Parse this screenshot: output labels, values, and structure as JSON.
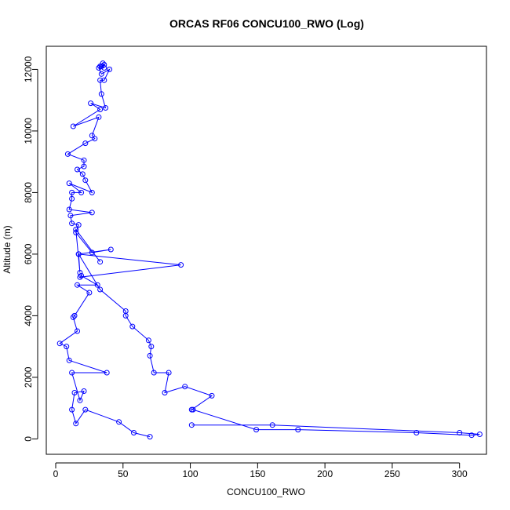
{
  "chart_data": {
    "type": "line",
    "title": "ORCAS RF06 CONCU100_RWO (Log)",
    "xlabel": "CONCU100_RWO",
    "ylabel": "Altitude (m)",
    "xlim": [
      -7,
      320
    ],
    "ylim": [
      -500,
      12750
    ],
    "x_ticks": [
      0,
      50,
      100,
      150,
      200,
      250,
      300
    ],
    "y_ticks": [
      0,
      2000,
      4000,
      6000,
      8000,
      10000,
      12000
    ],
    "grid": false,
    "marker": "open-circle",
    "colors": {
      "series": "#0000ff"
    },
    "series": [
      {
        "points": [
          [
            70,
            70
          ],
          [
            58,
            200
          ],
          [
            47,
            550
          ],
          [
            22,
            950
          ],
          [
            15,
            500
          ],
          [
            12,
            950
          ],
          [
            14,
            1500
          ],
          [
            21,
            1550
          ],
          [
            18,
            1250
          ],
          [
            12,
            2150
          ],
          [
            38,
            2150
          ],
          [
            10,
            2550
          ],
          [
            8,
            3000
          ],
          [
            3,
            3100
          ],
          [
            16,
            3500
          ],
          [
            13,
            3950
          ],
          [
            14,
            4000
          ],
          [
            25,
            4750
          ],
          [
            16,
            5000
          ],
          [
            31,
            5000
          ],
          [
            19,
            5300
          ],
          [
            18,
            5250
          ],
          [
            93,
            5650
          ],
          [
            17,
            6000
          ],
          [
            41,
            6150
          ],
          [
            27,
            6050
          ],
          [
            15,
            6700
          ],
          [
            17,
            6950
          ],
          [
            12,
            7000
          ],
          [
            11,
            7250
          ],
          [
            27,
            7350
          ],
          [
            10,
            7450
          ],
          [
            12,
            7800
          ],
          [
            12,
            8000
          ],
          [
            19,
            8000
          ],
          [
            10,
            8300
          ],
          [
            27,
            8000
          ],
          [
            22,
            8400
          ],
          [
            20,
            8600
          ],
          [
            16,
            8750
          ],
          [
            21,
            8850
          ],
          [
            21,
            9050
          ],
          [
            9,
            9250
          ],
          [
            22,
            9600
          ],
          [
            29,
            9750
          ],
          [
            27,
            9850
          ],
          [
            32,
            10450
          ],
          [
            13,
            10150
          ],
          [
            33,
            10700
          ],
          [
            26,
            10900
          ],
          [
            37,
            10750
          ],
          [
            34,
            11200
          ],
          [
            33,
            11650
          ],
          [
            36,
            11650
          ],
          [
            40,
            12000
          ],
          [
            34,
            11850
          ],
          [
            32,
            12050
          ],
          [
            34,
            12100
          ],
          [
            36,
            12150
          ],
          [
            35,
            12200
          ],
          [
            33,
            12100
          ],
          [
            36,
            12050
          ]
        ]
      },
      {
        "points": [
          [
            101,
            450
          ],
          [
            161,
            450
          ],
          [
            300,
            200
          ],
          [
            315,
            150
          ],
          [
            309,
            120
          ],
          [
            268,
            200
          ],
          [
            180,
            300
          ],
          [
            149,
            300
          ],
          [
            102,
            950
          ],
          [
            101,
            950
          ],
          [
            116,
            1400
          ],
          [
            96,
            1700
          ],
          [
            81,
            1500
          ],
          [
            84,
            2150
          ],
          [
            73,
            2150
          ],
          [
            70,
            2700
          ],
          [
            71,
            3000
          ],
          [
            69,
            3200
          ],
          [
            57,
            3650
          ],
          [
            52,
            4000
          ],
          [
            52,
            4150
          ],
          [
            33,
            4850
          ],
          [
            17,
            6000
          ],
          [
            18,
            5400
          ],
          [
            15,
            6800
          ],
          [
            33,
            5750
          ]
        ]
      }
    ]
  }
}
